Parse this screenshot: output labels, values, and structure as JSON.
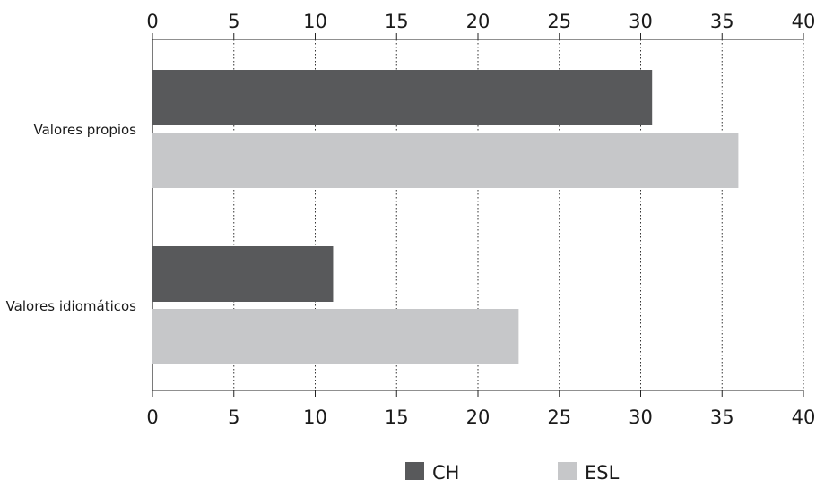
{
  "chart_data": {
    "type": "bar",
    "orientation": "horizontal",
    "categories": [
      "Valores propios",
      "Valores idiomáticos"
    ],
    "series": [
      {
        "name": "CH",
        "values": [
          30.7,
          11.1
        ],
        "color": "#58595b"
      },
      {
        "name": "ESL",
        "values": [
          36.0,
          22.5
        ],
        "color": "#c6c7c9"
      }
    ],
    "xlim": [
      0,
      40
    ],
    "xticks": [
      "0",
      "5",
      "10",
      "15",
      "20",
      "25",
      "30",
      "35",
      "40"
    ],
    "axis_position": "top and bottom",
    "grid": "vertical dotted",
    "legend_position": "bottom-center",
    "title": "",
    "xlabel": "",
    "ylabel": ""
  }
}
